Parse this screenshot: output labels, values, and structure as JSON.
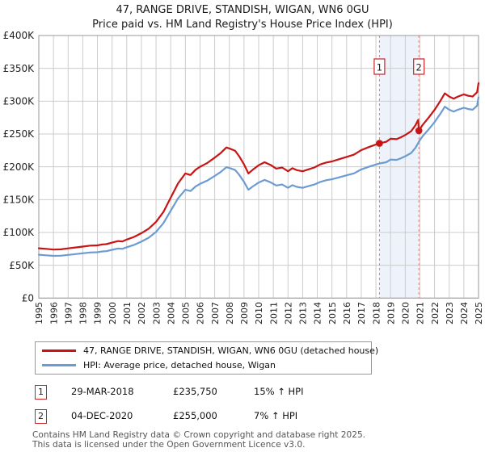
{
  "chart_data": {
    "type": "line",
    "title": "47, RANGE DRIVE, STANDISH, WIGAN, WN6 0GU",
    "subtitle": "Price paid vs. HM Land Registry's House Price Index (HPI)",
    "units": "GBP thousands",
    "grid": true,
    "legend_position": "bottom",
    "x_axis": {
      "min": 1995,
      "max": 2025,
      "ticks": [
        1995,
        1996,
        1997,
        1998,
        1999,
        2000,
        2001,
        2002,
        2003,
        2004,
        2005,
        2006,
        2007,
        2008,
        2009,
        2010,
        2011,
        2012,
        2013,
        2014,
        2015,
        2016,
        2017,
        2018,
        2019,
        2020,
        2021,
        2022,
        2023,
        2024,
        2025
      ]
    },
    "y_axis": {
      "min": 0,
      "max": 400,
      "tick_values": [
        0,
        50,
        100,
        150,
        200,
        250,
        300,
        350,
        400
      ],
      "tick_labels": [
        "£0",
        "£50K",
        "£100K",
        "£150K",
        "£200K",
        "£250K",
        "£300K",
        "£350K",
        "£400K"
      ]
    },
    "x": [
      1995.0,
      1995.5,
      1996.0,
      1996.5,
      1997.0,
      1997.5,
      1998.0,
      1998.5,
      1999.0,
      1999.3,
      1999.6,
      2000.0,
      2000.4,
      2000.7,
      2001.0,
      2001.5,
      2002.0,
      2002.5,
      2003.0,
      2003.5,
      2004.0,
      2004.5,
      2005.0,
      2005.35,
      2005.7,
      2006.0,
      2006.5,
      2007.0,
      2007.4,
      2007.8,
      2008.1,
      2008.4,
      2008.7,
      2009.0,
      2009.3,
      2009.6,
      2010.0,
      2010.4,
      2010.8,
      2011.2,
      2011.6,
      2012.0,
      2012.3,
      2012.6,
      2013.0,
      2013.4,
      2013.8,
      2014.2,
      2014.6,
      2015.0,
      2015.5,
      2016.0,
      2016.5,
      2017.0,
      2017.5,
      2018.0,
      2018.24,
      2018.7,
      2019.0,
      2019.4,
      2019.7,
      2020.0,
      2020.4,
      2020.7,
      2020.88,
      2020.93,
      2021.2,
      2021.6,
      2022.0,
      2022.4,
      2022.7,
      2023.0,
      2023.3,
      2023.6,
      2024.0,
      2024.3,
      2024.6,
      2024.9,
      2025.0
    ],
    "series": [
      {
        "name": "47, RANGE DRIVE, STANDISH, WIGAN, WN6 0GU (detached house)",
        "color": "#c81414",
        "values": [
          75.9,
          75.0,
          73.9,
          74.3,
          75.7,
          77.1,
          78.5,
          79.9,
          80.3,
          81.7,
          82.2,
          84.5,
          86.8,
          86.3,
          89.1,
          93.2,
          98.9,
          105.8,
          116.2,
          131.1,
          153.0,
          174.8,
          189.8,
          187.5,
          195.5,
          200.1,
          205.9,
          213.9,
          220.8,
          229.4,
          227.1,
          224.3,
          215.1,
          203.6,
          189.8,
          195.5,
          202.4,
          207.0,
          203.0,
          197.2,
          199.0,
          193.2,
          197.8,
          194.9,
          193.2,
          196.1,
          199.0,
          203.6,
          206.4,
          208.2,
          211.6,
          215.1,
          218.5,
          225.4,
          230.0,
          234.0,
          235.75,
          238.1,
          242.7,
          242.1,
          245.0,
          248.4,
          254.2,
          263.4,
          271.4,
          255.0,
          264.3,
          275.0,
          286.8,
          300.7,
          311.9,
          307.1,
          303.9,
          307.1,
          310.3,
          308.2,
          307.1,
          313.5,
          327.4
        ]
      },
      {
        "name": "HPI: Average price, detached house, Wigan",
        "color": "#6b9bd1",
        "values": [
          66.0,
          65.2,
          64.3,
          64.6,
          65.8,
          67.0,
          68.3,
          69.5,
          69.8,
          71.0,
          71.5,
          73.5,
          75.5,
          75.0,
          77.5,
          81.0,
          86.0,
          92.0,
          101.0,
          114.0,
          133.0,
          152.0,
          165.0,
          163.0,
          170.0,
          174.0,
          179.0,
          186.0,
          192.0,
          199.5,
          197.5,
          195.0,
          187.0,
          177.0,
          165.0,
          170.0,
          176.0,
          180.0,
          176.5,
          171.5,
          173.0,
          168.0,
          172.0,
          169.5,
          168.0,
          170.5,
          173.0,
          177.0,
          179.5,
          181.0,
          184.0,
          187.0,
          190.0,
          196.0,
          200.0,
          203.5,
          205.0,
          207.0,
          211.0,
          210.5,
          213.0,
          216.0,
          221.0,
          229.0,
          236.0,
          238.3,
          247.0,
          257.0,
          268.0,
          281.0,
          291.5,
          287.0,
          284.0,
          287.0,
          290.0,
          288.0,
          287.0,
          293.0,
          306.0
        ]
      }
    ],
    "sales": [
      {
        "label": "1",
        "x": 2018.24,
        "value": 235.75
      },
      {
        "label": "2",
        "x": 2020.93,
        "value": 255.0
      }
    ],
    "band_color": "#edf2fb",
    "dash_color": "#e08080",
    "grid_color": "#cccccc",
    "border_color": "#999999"
  },
  "annotations": [
    {
      "marker": "1",
      "date": "29-MAR-2018",
      "price": "£235,750",
      "hpi_diff": "15% ↑ HPI"
    },
    {
      "marker": "2",
      "date": "04-DEC-2020",
      "price": "£255,000",
      "hpi_diff": "7% ↑ HPI"
    }
  ],
  "footer": {
    "line1": "Contains HM Land Registry data © Crown copyright and database right 2025.",
    "line2": "This data is licensed under the Open Government Licence v3.0."
  }
}
